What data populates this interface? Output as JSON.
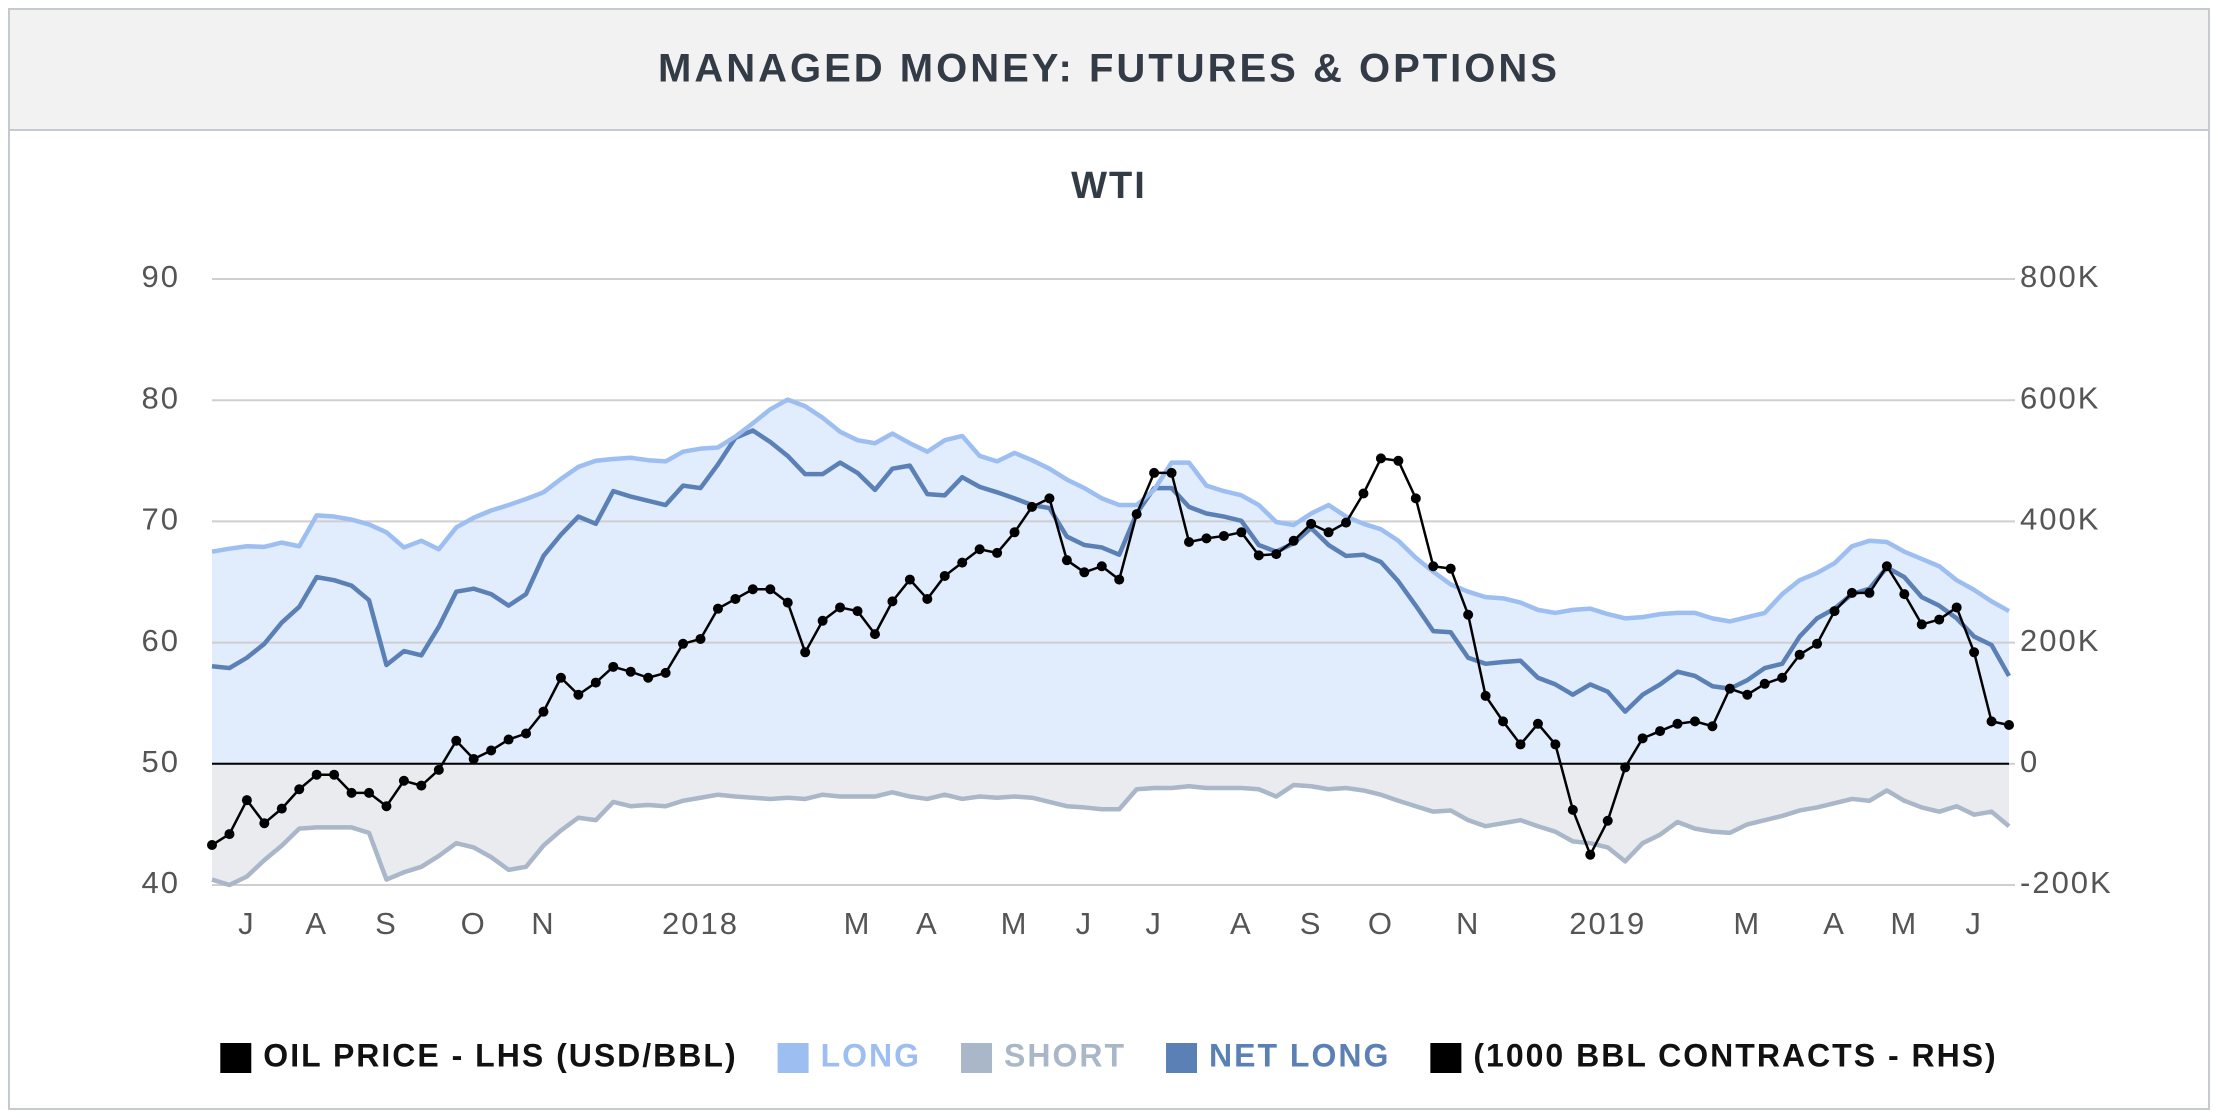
{
  "chart_data": {
    "type": "line",
    "title": "MANAGED MONEY: FUTURES & OPTIONS",
    "subtitle": "WTI",
    "categories": [
      null,
      null,
      "J",
      null,
      null,
      null,
      "A",
      null,
      null,
      null,
      "S",
      null,
      null,
      null,
      null,
      "O",
      null,
      null,
      null,
      "N",
      null,
      null,
      null,
      null,
      null,
      null,
      null,
      null,
      "2018",
      null,
      null,
      null,
      null,
      null,
      null,
      null,
      null,
      "M",
      null,
      null,
      null,
      "A",
      null,
      null,
      null,
      null,
      "M",
      null,
      null,
      null,
      "J",
      null,
      null,
      null,
      "J",
      null,
      null,
      null,
      null,
      "A",
      null,
      null,
      null,
      "S",
      null,
      null,
      null,
      "O",
      null,
      null,
      null,
      null,
      "N",
      null,
      null,
      null,
      null,
      null,
      null,
      null,
      "2019",
      null,
      null,
      null,
      null,
      null,
      null,
      null,
      "M",
      null,
      null,
      null,
      null,
      "A",
      null,
      null,
      null,
      "M",
      null,
      null,
      null,
      "J",
      null,
      null
    ],
    "series": [
      {
        "name": "OIL PRICE - LHS (USD/BBL)",
        "color": "#000000",
        "markers": true,
        "values": [
          43.3,
          44.2,
          47.0,
          45.1,
          46.3,
          47.9,
          49.1,
          49.1,
          47.6,
          47.6,
          46.5,
          48.6,
          48.2,
          49.5,
          51.9,
          50.4,
          51.1,
          52.0,
          52.5,
          54.3,
          57.1,
          55.7,
          56.7,
          58.0,
          57.6,
          57.1,
          57.5,
          59.9,
          60.3,
          62.8,
          63.6,
          64.4,
          64.4,
          63.3,
          59.2,
          61.8,
          62.9,
          62.6,
          60.7,
          63.4,
          65.2,
          63.6,
          65.5,
          66.6,
          67.7,
          67.4,
          69.1,
          71.2,
          71.9,
          66.8,
          65.8,
          66.3,
          65.2,
          70.6,
          74.0,
          74.0,
          68.3,
          68.6,
          68.8,
          69.1,
          67.2,
          67.3,
          68.4,
          69.8,
          69.1,
          69.9,
          72.3,
          75.2,
          75.0,
          71.9,
          66.3,
          66.1,
          62.3,
          55.6,
          53.5,
          51.6,
          53.3,
          51.6,
          46.2,
          42.5,
          45.3,
          49.7,
          52.1,
          52.7,
          53.3,
          53.5,
          53.1,
          56.2,
          55.7,
          56.6,
          57.1,
          59.0,
          59.9,
          62.6,
          64.1,
          64.1,
          66.3,
          64.0,
          61.5,
          61.9,
          62.9,
          59.2,
          53.5,
          53.2
        ]
      },
      {
        "name": "LONG",
        "color": "#9dbef0",
        "fill": "#e1ecfc",
        "axis": "y2",
        "values": [
          350000,
          355000,
          359000,
          358000,
          365000,
          359000,
          410000,
          408000,
          403000,
          395000,
          382000,
          357000,
          368000,
          354000,
          390000,
          406000,
          418000,
          427000,
          437000,
          448000,
          470000,
          490000,
          500000,
          503000,
          505000,
          501000,
          499000,
          515000,
          520000,
          522000,
          540000,
          562000,
          585000,
          601000,
          590000,
          571000,
          548000,
          534000,
          529000,
          545000,
          529000,
          515000,
          534000,
          541000,
          508000,
          499000,
          513000,
          501000,
          487000,
          469000,
          455000,
          438000,
          427000,
          427000,
          452000,
          497000,
          497000,
          459000,
          450000,
          443000,
          427000,
          399000,
          394000,
          413000,
          427000,
          408000,
          396000,
          387000,
          368000,
          340000,
          317000,
          296000,
          284000,
          275000,
          273000,
          266000,
          254000,
          249000,
          254000,
          256000,
          247000,
          240000,
          242000,
          247000,
          249000,
          249000,
          240000,
          235000,
          242000,
          249000,
          280000,
          303000,
          315000,
          331000,
          359000,
          368000,
          366000,
          350000,
          338000,
          326000,
          303000,
          287000,
          268000,
          252000
        ]
      },
      {
        "name": "SHORT",
        "color": "#a9b7c9",
        "fill": "#e9ebef",
        "axis": "y2",
        "values": [
          -191000,
          -200000,
          -186000,
          -159000,
          -135000,
          -107000,
          -105000,
          -105000,
          -105000,
          -114000,
          -191000,
          -179000,
          -170000,
          -152000,
          -131000,
          -138000,
          -154000,
          -175000,
          -170000,
          -135000,
          -110000,
          -89000,
          -93000,
          -63000,
          -70000,
          -68000,
          -70000,
          -61000,
          -56000,
          -51000,
          -54000,
          -56000,
          -58000,
          -56000,
          -58000,
          -51000,
          -54000,
          -54000,
          -54000,
          -47000,
          -54000,
          -58000,
          -51000,
          -58000,
          -54000,
          -56000,
          -54000,
          -56000,
          -63000,
          -70000,
          -72000,
          -75000,
          -75000,
          -42000,
          -40000,
          -40000,
          -37000,
          -40000,
          -40000,
          -40000,
          -42000,
          -54000,
          -35000,
          -37000,
          -42000,
          -40000,
          -44000,
          -51000,
          -61000,
          -70000,
          -79000,
          -77000,
          -93000,
          -103000,
          -98000,
          -93000,
          -103000,
          -112000,
          -128000,
          -131000,
          -138000,
          -161000,
          -131000,
          -117000,
          -96000,
          -107000,
          -112000,
          -114000,
          -100000,
          -93000,
          -86000,
          -77000,
          -72000,
          -65000,
          -58000,
          -61000,
          -44000,
          -61000,
          -72000,
          -79000,
          -70000,
          -84000,
          -79000,
          -103000
        ]
      },
      {
        "name": "NET LONG",
        "color": "#5b80b5",
        "axis": "y2",
        "values": [
          161000,
          158000,
          175000,
          198000,
          233000,
          259000,
          308000,
          303000,
          294000,
          270000,
          163000,
          186000,
          179000,
          226000,
          284000,
          289000,
          280000,
          261000,
          280000,
          343000,
          378000,
          408000,
          396000,
          450000,
          441000,
          434000,
          427000,
          459000,
          455000,
          494000,
          538000,
          550000,
          531000,
          508000,
          478000,
          478000,
          497000,
          480000,
          452000,
          487000,
          492000,
          445000,
          443000,
          473000,
          457000,
          448000,
          438000,
          427000,
          422000,
          375000,
          361000,
          357000,
          345000,
          413000,
          455000,
          455000,
          424000,
          413000,
          408000,
          401000,
          361000,
          350000,
          364000,
          389000,
          361000,
          343000,
          345000,
          333000,
          301000,
          261000,
          219000,
          217000,
          175000,
          165000,
          168000,
          170000,
          142000,
          131000,
          114000,
          131000,
          119000,
          86000,
          114000,
          131000,
          152000,
          145000,
          128000,
          124000,
          138000,
          158000,
          165000,
          210000,
          240000,
          256000,
          280000,
          289000,
          324000,
          308000,
          275000,
          261000,
          240000,
          210000,
          196000,
          145000
        ]
      }
    ],
    "legend_note": "(1000 BBL CONTRACTS - RHS)",
    "ylim": [
      40,
      90
    ],
    "yticks": [
      40,
      50,
      60,
      70,
      80,
      90
    ],
    "y2lim": [
      -200000,
      800000
    ],
    "y2ticks": [
      {
        "value": -200000,
        "label": "-200K"
      },
      0,
      {
        "value": 200000,
        "label": "200K"
      },
      {
        "value": 400000,
        "label": "400K"
      },
      {
        "value": 600000,
        "label": "600K"
      },
      {
        "value": 800000,
        "label": "800K"
      }
    ],
    "grid": true
  }
}
